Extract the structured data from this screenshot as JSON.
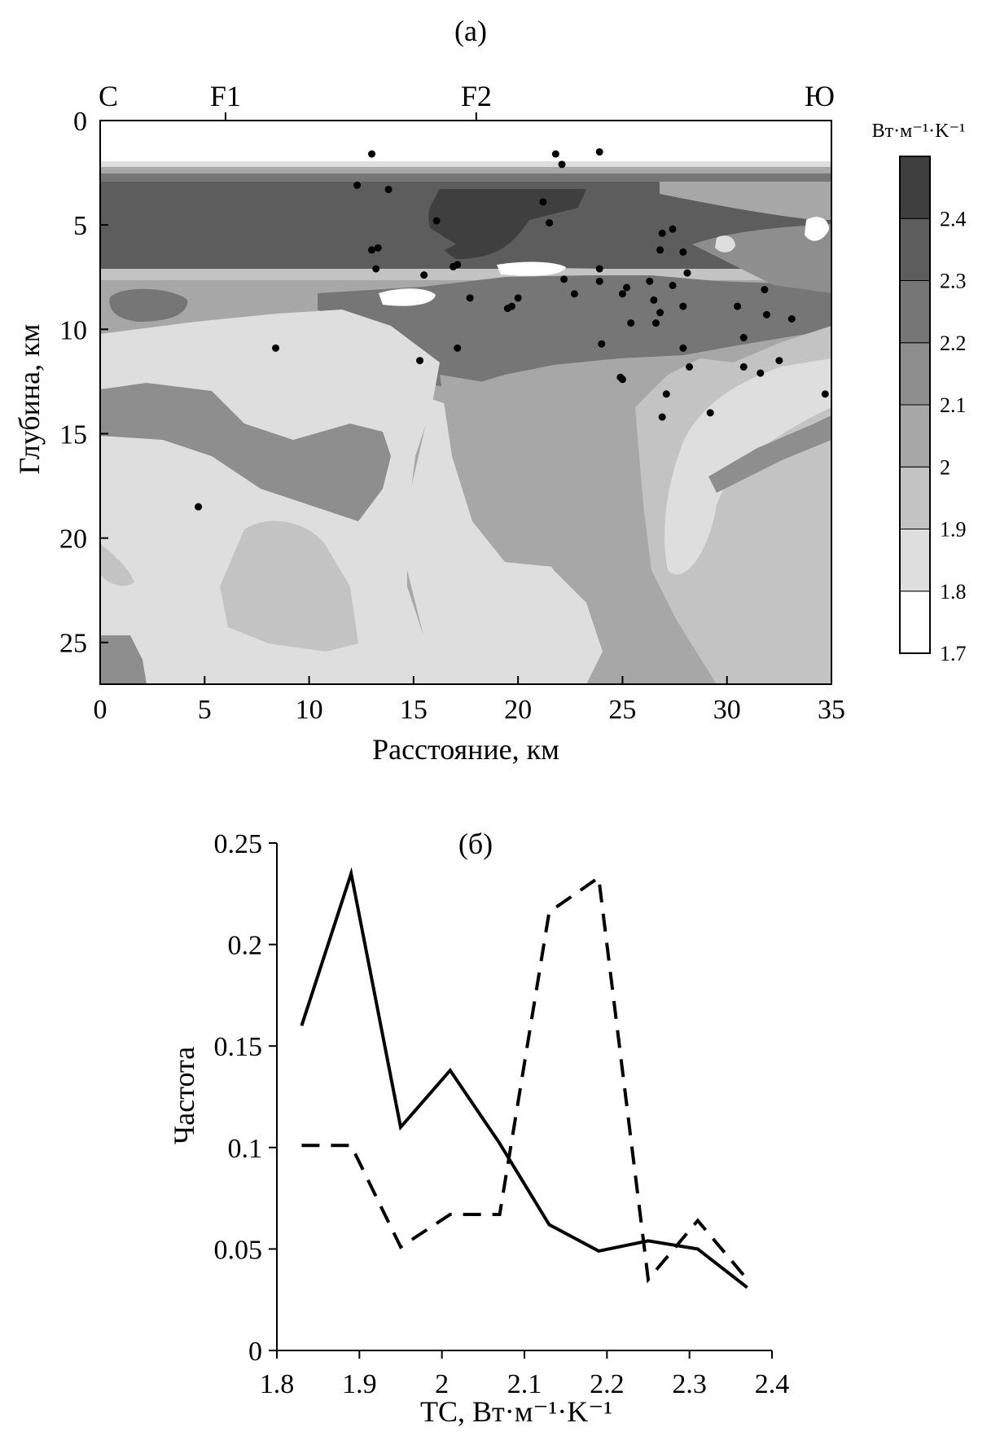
{
  "chart_data": [
    {
      "panel": "(a)",
      "type": "heatmap",
      "xlabel": "Расстояние, км",
      "ylabel": "Глубина, км",
      "xlim": [
        0,
        35
      ],
      "ylim": [
        27,
        0
      ],
      "x_ticks": [
        0,
        5,
        10,
        15,
        20,
        25,
        30,
        35
      ],
      "y_ticks": [
        0,
        5,
        10,
        15,
        20,
        25
      ],
      "top_labels": [
        {
          "text": "С",
          "x": 0
        },
        {
          "text": "F1",
          "x": 6
        },
        {
          "text": "F2",
          "x": 18
        },
        {
          "text": "Ю",
          "x": 35
        }
      ],
      "colorbar": {
        "title": "Вт·м⁻¹·K⁻¹",
        "ticks": [
          "2.4",
          "2.3",
          "2.2",
          "2.1",
          "2",
          "1.9",
          "1.8",
          "1.7"
        ],
        "levels": [
          1.7,
          1.8,
          1.9,
          2.0,
          2.1,
          2.2,
          2.3,
          2.4,
          2.5
        ],
        "colors": [
          "#ffffff",
          "#dedede",
          "#c3c3c3",
          "#a7a7a7",
          "#8e8e8e",
          "#767676",
          "#5d5d5d",
          "#3f3f3f"
        ]
      },
      "points": [
        [
          13,
          1.6
        ],
        [
          21.8,
          1.6
        ],
        [
          23.9,
          1.5
        ],
        [
          22.1,
          2.1
        ],
        [
          12.3,
          3.1
        ],
        [
          13.8,
          3.3
        ],
        [
          21.2,
          3.9
        ],
        [
          16.1,
          4.8
        ],
        [
          21.5,
          4.9
        ],
        [
          26.9,
          5.4
        ],
        [
          27.4,
          5.2
        ],
        [
          13.3,
          6.1
        ],
        [
          13,
          6.2
        ],
        [
          26.8,
          6.2
        ],
        [
          27.9,
          6.3
        ],
        [
          13.2,
          7.1
        ],
        [
          16.9,
          7
        ],
        [
          17.1,
          6.9
        ],
        [
          23.9,
          7.1
        ],
        [
          15.5,
          7.4
        ],
        [
          22.2,
          7.6
        ],
        [
          23.9,
          7.7
        ],
        [
          26.3,
          7.7
        ],
        [
          28.1,
          7.3
        ],
        [
          27.4,
          7.9
        ],
        [
          25.2,
          8
        ],
        [
          25,
          8.3
        ],
        [
          22.7,
          8.3
        ],
        [
          17.7,
          8.5
        ],
        [
          20,
          8.5
        ],
        [
          19.7,
          8.9
        ],
        [
          19.5,
          9
        ],
        [
          26.5,
          8.6
        ],
        [
          27.9,
          8.9
        ],
        [
          30.5,
          8.9
        ],
        [
          31.8,
          8.1
        ],
        [
          26.8,
          9.2
        ],
        [
          31.9,
          9.3
        ],
        [
          33.1,
          9.5
        ],
        [
          25.4,
          9.7
        ],
        [
          26.6,
          9.7
        ],
        [
          24,
          10.7
        ],
        [
          30.8,
          10.4
        ],
        [
          8.4,
          10.9
        ],
        [
          17.1,
          10.9
        ],
        [
          27.9,
          10.9
        ],
        [
          15.3,
          11.5
        ],
        [
          32.5,
          11.5
        ],
        [
          28.2,
          11.8
        ],
        [
          30.8,
          11.8
        ],
        [
          31.6,
          12.1
        ],
        [
          24.9,
          12.3
        ],
        [
          25,
          12.4
        ],
        [
          27.1,
          13.1
        ],
        [
          34.7,
          13.1
        ],
        [
          26.9,
          14.2
        ],
        [
          29.2,
          14
        ],
        [
          4.7,
          18.5
        ]
      ]
    },
    {
      "panel": "(б)",
      "type": "line",
      "xlabel": "TC, Вт·м⁻¹·K⁻¹",
      "ylabel": "Частота",
      "xlim": [
        1.8,
        2.4
      ],
      "ylim": [
        0,
        0.25
      ],
      "x_ticks": [
        "1.8",
        "1.9",
        "2",
        "2.1",
        "2.2",
        "2.3",
        "2.4"
      ],
      "y_ticks": [
        "0",
        "0.05",
        "0.1",
        "0.15",
        "0.2",
        "0.25"
      ],
      "x": [
        1.83,
        1.89,
        1.95,
        2.01,
        2.07,
        2.13,
        2.19,
        2.25,
        2.31,
        2.37
      ],
      "series": [
        {
          "style": "solid",
          "values": [
            0.16,
            0.235,
            0.11,
            0.138,
            0.102,
            0.062,
            0.049,
            0.054,
            0.05,
            0.031
          ]
        },
        {
          "style": "dashed",
          "values": [
            0.101,
            0.101,
            0.051,
            0.067,
            0.067,
            0.216,
            0.233,
            0.035,
            0.064,
            0.035
          ]
        }
      ]
    }
  ]
}
